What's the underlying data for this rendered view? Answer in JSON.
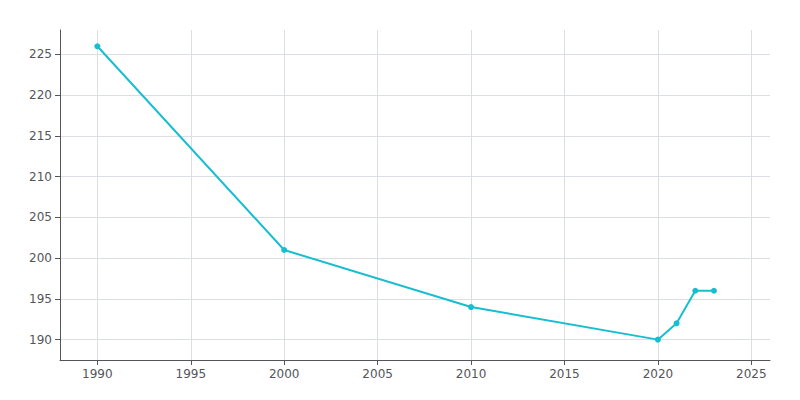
{
  "chart_data": {
    "type": "line",
    "x": [
      1990,
      2000,
      2010,
      2020,
      2021,
      2022,
      2023
    ],
    "values": [
      226,
      201,
      194,
      190,
      192,
      196,
      196
    ],
    "color": "#17becf",
    "marker": "circle",
    "xlim": [
      1988,
      2026
    ],
    "ylim": [
      187.5,
      228
    ],
    "xticks": [
      1990,
      1995,
      2000,
      2005,
      2010,
      2015,
      2020,
      2025
    ],
    "yticks": [
      190,
      195,
      200,
      205,
      210,
      215,
      220,
      225
    ],
    "grid": true
  }
}
